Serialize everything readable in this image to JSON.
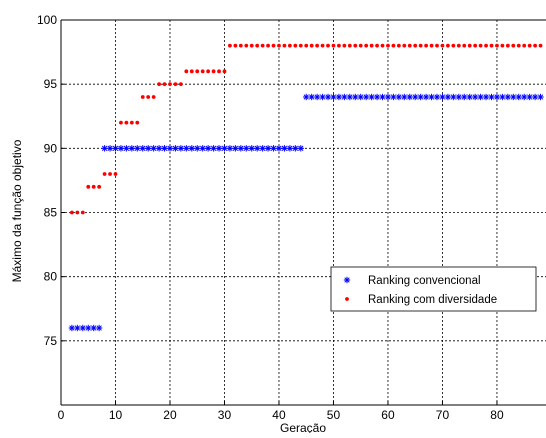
{
  "chart_data": {
    "type": "scatter",
    "title": "",
    "xlabel": "Geração",
    "ylabel": "Máximo da função objetivo",
    "xlim": [
      0,
      89
    ],
    "ylim": [
      70,
      100
    ],
    "xticks": [
      0,
      10,
      20,
      30,
      40,
      50,
      60,
      70,
      80
    ],
    "yticks": [
      75,
      80,
      85,
      90,
      95,
      100
    ],
    "grid": true,
    "legend_position": "bottom-right",
    "series": [
      {
        "name": "Ranking convencional",
        "marker": "asterisk",
        "color": "#0000ff",
        "points": [
          [
            2,
            76
          ],
          [
            3,
            76
          ],
          [
            4,
            76
          ],
          [
            5,
            76
          ],
          [
            6,
            76
          ],
          [
            7,
            76
          ],
          [
            8,
            90
          ],
          [
            9,
            90
          ],
          [
            10,
            90
          ],
          [
            11,
            90
          ],
          [
            12,
            90
          ],
          [
            13,
            90
          ],
          [
            14,
            90
          ],
          [
            15,
            90
          ],
          [
            16,
            90
          ],
          [
            17,
            90
          ],
          [
            18,
            90
          ],
          [
            19,
            90
          ],
          [
            20,
            90
          ],
          [
            21,
            90
          ],
          [
            22,
            90
          ],
          [
            23,
            90
          ],
          [
            24,
            90
          ],
          [
            25,
            90
          ],
          [
            26,
            90
          ],
          [
            27,
            90
          ],
          [
            28,
            90
          ],
          [
            29,
            90
          ],
          [
            30,
            90
          ],
          [
            31,
            90
          ],
          [
            32,
            90
          ],
          [
            33,
            90
          ],
          [
            34,
            90
          ],
          [
            35,
            90
          ],
          [
            36,
            90
          ],
          [
            37,
            90
          ],
          [
            38,
            90
          ],
          [
            39,
            90
          ],
          [
            40,
            90
          ],
          [
            41,
            90
          ],
          [
            42,
            90
          ],
          [
            43,
            90
          ],
          [
            44,
            90
          ],
          [
            45,
            94
          ],
          [
            46,
            94
          ],
          [
            47,
            94
          ],
          [
            48,
            94
          ],
          [
            49,
            94
          ],
          [
            50,
            94
          ],
          [
            51,
            94
          ],
          [
            52,
            94
          ],
          [
            53,
            94
          ],
          [
            54,
            94
          ],
          [
            55,
            94
          ],
          [
            56,
            94
          ],
          [
            57,
            94
          ],
          [
            58,
            94
          ],
          [
            59,
            94
          ],
          [
            60,
            94
          ],
          [
            61,
            94
          ],
          [
            62,
            94
          ],
          [
            63,
            94
          ],
          [
            64,
            94
          ],
          [
            65,
            94
          ],
          [
            66,
            94
          ],
          [
            67,
            94
          ],
          [
            68,
            94
          ],
          [
            69,
            94
          ],
          [
            70,
            94
          ],
          [
            71,
            94
          ],
          [
            72,
            94
          ],
          [
            73,
            94
          ],
          [
            74,
            94
          ],
          [
            75,
            94
          ],
          [
            76,
            94
          ],
          [
            77,
            94
          ],
          [
            78,
            94
          ],
          [
            79,
            94
          ],
          [
            80,
            94
          ],
          [
            81,
            94
          ],
          [
            82,
            94
          ],
          [
            83,
            94
          ],
          [
            84,
            94
          ],
          [
            85,
            94
          ],
          [
            86,
            94
          ],
          [
            87,
            94
          ],
          [
            88,
            94
          ]
        ]
      },
      {
        "name": "Ranking com diversidade",
        "marker": "dot",
        "color": "#ff0000",
        "points": [
          [
            2,
            85
          ],
          [
            3,
            85
          ],
          [
            4,
            85
          ],
          [
            5,
            87
          ],
          [
            6,
            87
          ],
          [
            7,
            87
          ],
          [
            8,
            88
          ],
          [
            9,
            88
          ],
          [
            10,
            88
          ],
          [
            11,
            92
          ],
          [
            12,
            92
          ],
          [
            13,
            92
          ],
          [
            14,
            92
          ],
          [
            15,
            94
          ],
          [
            16,
            94
          ],
          [
            17,
            94
          ],
          [
            18,
            95
          ],
          [
            19,
            95
          ],
          [
            20,
            95
          ],
          [
            21,
            95
          ],
          [
            22,
            95
          ],
          [
            23,
            96
          ],
          [
            24,
            96
          ],
          [
            25,
            96
          ],
          [
            26,
            96
          ],
          [
            27,
            96
          ],
          [
            28,
            96
          ],
          [
            29,
            96
          ],
          [
            30,
            96
          ],
          [
            31,
            98
          ],
          [
            32,
            98
          ],
          [
            33,
            98
          ],
          [
            34,
            98
          ],
          [
            35,
            98
          ],
          [
            36,
            98
          ],
          [
            37,
            98
          ],
          [
            38,
            98
          ],
          [
            39,
            98
          ],
          [
            40,
            98
          ],
          [
            41,
            98
          ],
          [
            42,
            98
          ],
          [
            43,
            98
          ],
          [
            44,
            98
          ],
          [
            45,
            98
          ],
          [
            46,
            98
          ],
          [
            47,
            98
          ],
          [
            48,
            98
          ],
          [
            49,
            98
          ],
          [
            50,
            98
          ],
          [
            51,
            98
          ],
          [
            52,
            98
          ],
          [
            53,
            98
          ],
          [
            54,
            98
          ],
          [
            55,
            98
          ],
          [
            56,
            98
          ],
          [
            57,
            98
          ],
          [
            58,
            98
          ],
          [
            59,
            98
          ],
          [
            60,
            98
          ],
          [
            61,
            98
          ],
          [
            62,
            98
          ],
          [
            63,
            98
          ],
          [
            64,
            98
          ],
          [
            65,
            98
          ],
          [
            66,
            98
          ],
          [
            67,
            98
          ],
          [
            68,
            98
          ],
          [
            69,
            98
          ],
          [
            70,
            98
          ],
          [
            71,
            98
          ],
          [
            72,
            98
          ],
          [
            73,
            98
          ],
          [
            74,
            98
          ],
          [
            75,
            98
          ],
          [
            76,
            98
          ],
          [
            77,
            98
          ],
          [
            78,
            98
          ],
          [
            79,
            98
          ],
          [
            80,
            98
          ],
          [
            81,
            98
          ],
          [
            82,
            98
          ],
          [
            83,
            98
          ],
          [
            84,
            98
          ],
          [
            85,
            98
          ],
          [
            86,
            98
          ],
          [
            87,
            98
          ],
          [
            88,
            98
          ]
        ]
      }
    ]
  }
}
